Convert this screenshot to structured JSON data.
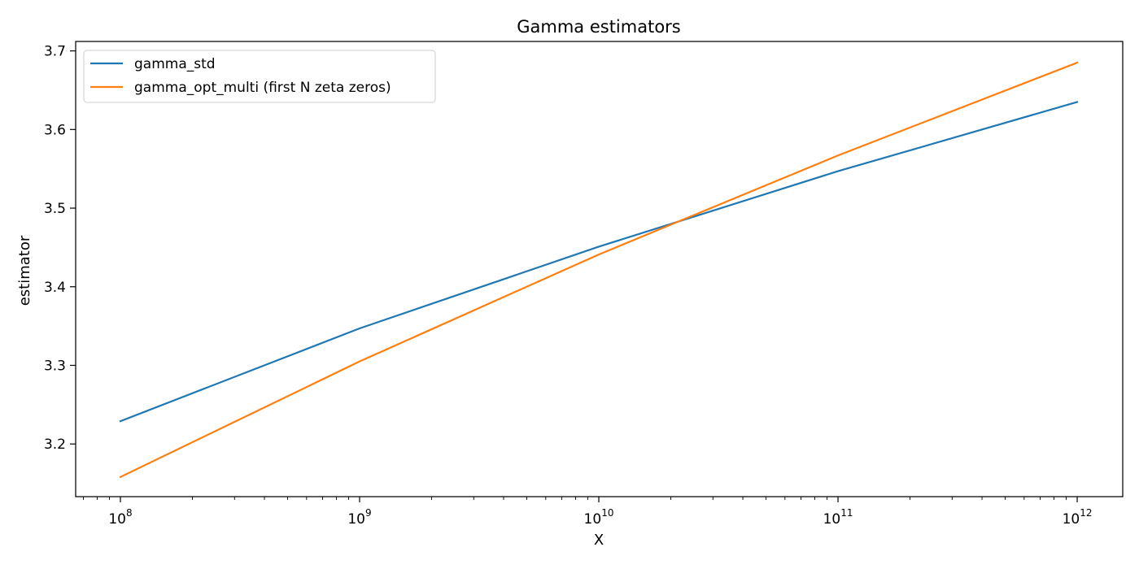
{
  "chart_data": {
    "type": "line",
    "title": "Gamma estimators",
    "xlabel": "X",
    "ylabel": "estimator",
    "xscale": "log",
    "xlim": [
      65000000.0,
      1550000000000.0
    ],
    "ylim": [
      3.133,
      3.712
    ],
    "x_ticks": [
      {
        "value": 100000000.0,
        "base": "10",
        "exp": "8"
      },
      {
        "value": 1000000000.0,
        "base": "10",
        "exp": "9"
      },
      {
        "value": 10000000000.0,
        "base": "10",
        "exp": "10"
      },
      {
        "value": 100000000000.0,
        "base": "10",
        "exp": "11"
      },
      {
        "value": 1000000000000.0,
        "base": "10",
        "exp": "12"
      }
    ],
    "y_ticks": [
      {
        "value": 3.2,
        "label": "3.2"
      },
      {
        "value": 3.3,
        "label": "3.3"
      },
      {
        "value": 3.4,
        "label": "3.4"
      },
      {
        "value": 3.5,
        "label": "3.5"
      },
      {
        "value": 3.6,
        "label": "3.6"
      },
      {
        "value": 3.7,
        "label": "3.7"
      }
    ],
    "grid": false,
    "legend_position": "upper-left",
    "x": [
      100000000.0,
      1000000000.0,
      10000000000.0,
      100000000000.0,
      1000000000000.0
    ],
    "series": [
      {
        "name": "gamma_std",
        "color": "#1f77b4",
        "values": [
          3.229,
          3.347,
          3.451,
          3.547,
          3.635
        ]
      },
      {
        "name": "gamma_opt_multi (first N zeta zeros)",
        "color": "#ff7f0e",
        "values": [
          3.158,
          3.305,
          3.441,
          3.567,
          3.685
        ]
      }
    ]
  }
}
